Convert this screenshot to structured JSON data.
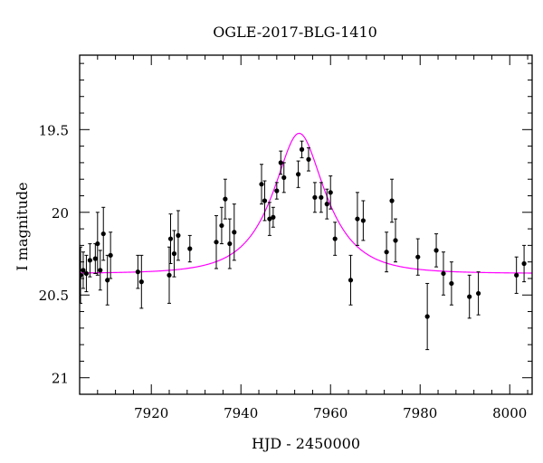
{
  "chart_data": {
    "type": "scatter",
    "title": "OGLE-2017-BLG-1410",
    "xlabel": "HJD - 2450000",
    "ylabel": "I magnitude",
    "xlim": [
      7904,
      8005
    ],
    "ylim": [
      21.1,
      19.05
    ],
    "y_inverted": true,
    "xticks": [
      7920,
      7940,
      7960,
      7980,
      8000
    ],
    "xtick_labels": [
      "7920",
      "7940",
      "7960",
      "7980",
      "8000"
    ],
    "yticks": [
      19.5,
      20,
      20.5,
      21
    ],
    "ytick_labels": [
      "19.5",
      "20",
      "20.5",
      "21"
    ],
    "grid": false,
    "marker_color": "#000000",
    "errorbar_color": "#000000",
    "model_color": "#ff00ff",
    "observations": {
      "x": [
        7904.2,
        7904.8,
        7905.5,
        7906.3,
        7907.5,
        7908.0,
        7908.6,
        7909.3,
        7910.2,
        7910.9,
        7917.0,
        7917.8,
        7924.0,
        7924.3,
        7925.1,
        7926.0,
        7928.6,
        7934.5,
        7935.7,
        7936.5,
        7937.5,
        7938.5,
        7944.6,
        7945.3,
        7946.4,
        7947.2,
        7948.0,
        7948.9,
        7949.6,
        7952.8,
        7953.6,
        7955.1,
        7956.5,
        7957.9,
        7959.2,
        7960.0,
        7961.0,
        7964.5,
        7966.0,
        7967.3,
        7972.5,
        7973.7,
        7974.5,
        7979.5,
        7981.6,
        7983.6,
        7985.2,
        7987.0,
        7991.0,
        7993.0,
        8001.5,
        8003.2
      ],
      "y": [
        20.38,
        20.35,
        20.37,
        20.29,
        20.28,
        20.19,
        20.35,
        20.13,
        20.41,
        20.26,
        20.36,
        20.42,
        20.38,
        20.16,
        20.25,
        20.14,
        20.22,
        20.18,
        20.08,
        19.92,
        20.19,
        20.12,
        19.83,
        19.93,
        20.04,
        20.03,
        19.87,
        19.7,
        19.79,
        19.77,
        19.62,
        19.68,
        19.91,
        19.91,
        19.95,
        19.88,
        20.16,
        20.41,
        20.04,
        20.05,
        20.24,
        19.93,
        20.17,
        20.27,
        20.63,
        20.23,
        20.37,
        20.43,
        20.51,
        20.49,
        20.38,
        20.31
      ],
      "err": [
        0.17,
        0.11,
        0.11,
        0.1,
        0.09,
        0.19,
        0.12,
        0.16,
        0.15,
        0.14,
        0.1,
        0.16,
        0.17,
        0.15,
        0.14,
        0.15,
        0.08,
        0.16,
        0.11,
        0.12,
        0.15,
        0.17,
        0.12,
        0.12,
        0.1,
        0.06,
        0.05,
        0.07,
        0.09,
        0.08,
        0.05,
        0.07,
        0.09,
        0.09,
        0.09,
        0.1,
        0.1,
        0.15,
        0.16,
        0.12,
        0.12,
        0.13,
        0.13,
        0.11,
        0.2,
        0.1,
        0.13,
        0.13,
        0.13,
        0.13,
        0.11,
        0.11
      ]
    },
    "model": {
      "t0": 7953.0,
      "u0": 0.5,
      "tE": 10.0,
      "I_base": 20.37
    }
  }
}
